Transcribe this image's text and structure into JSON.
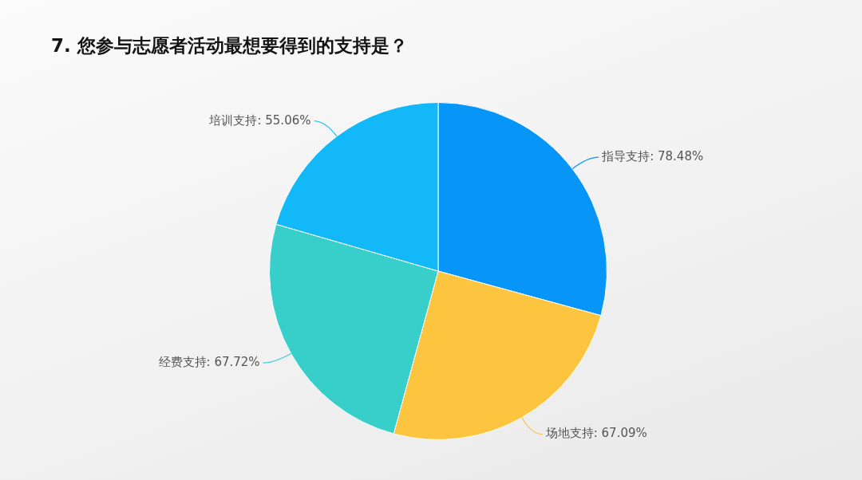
{
  "chart_data": {
    "type": "pie",
    "title": "7. 您参与志愿者活动最想要得到的支持是？",
    "categories": [
      "指导支持",
      "场地支持",
      "经费支持",
      "培训支持"
    ],
    "values": [
      78.48,
      67.09,
      67.72,
      55.06
    ],
    "value_labels": [
      "78.48%",
      "67.09%",
      "67.72%",
      "55.06%"
    ],
    "colors": [
      "#0796f7",
      "#fdc440",
      "#38cfcb",
      "#12b8f7"
    ]
  }
}
